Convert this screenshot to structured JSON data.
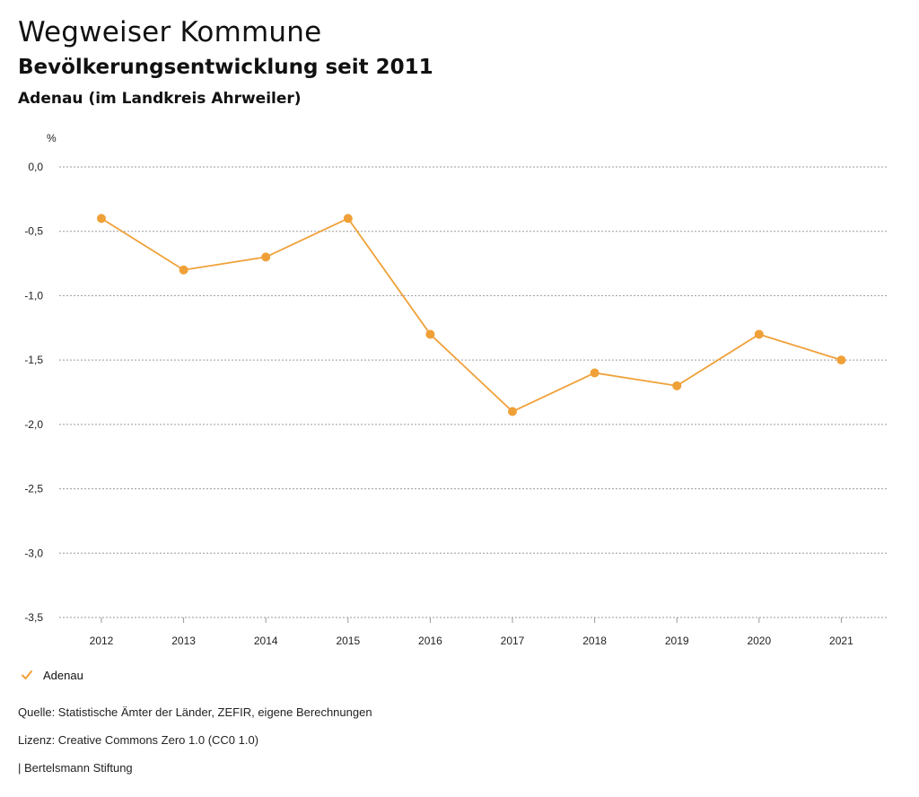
{
  "header": {
    "title": "Wegweiser Kommune",
    "subtitle": "Bevölkerungsentwicklung seit 2011",
    "place": "Adenau (im Landkreis Ahrweiler)"
  },
  "chart_data": {
    "type": "line",
    "unit_label": "%",
    "x": [
      "2012",
      "2013",
      "2014",
      "2015",
      "2016",
      "2017",
      "2018",
      "2019",
      "2020",
      "2021"
    ],
    "series": [
      {
        "name": "Adenau",
        "color": "#f0a038",
        "values": [
          -0.4,
          -0.8,
          -0.7,
          -0.4,
          -1.3,
          -1.9,
          -1.6,
          -1.7,
          -1.3,
          -1.5
        ]
      }
    ],
    "y_ticks": [
      "0,0",
      "-0,5",
      "-1,0",
      "-1,5",
      "-2,0",
      "-2,5",
      "-3,0",
      "-3,5"
    ],
    "ylim": [
      -3.5,
      0
    ],
    "grid": true,
    "legend_position": "bottom-left"
  },
  "legend": {
    "label": "Adenau"
  },
  "footer": {
    "source": "Quelle: Statistische Ämter der Länder, ZEFIR, eigene Berechnungen",
    "license": "Lizenz: Creative Commons Zero 1.0 (CC0 1.0)",
    "publisher": "| Bertelsmann Stiftung"
  }
}
